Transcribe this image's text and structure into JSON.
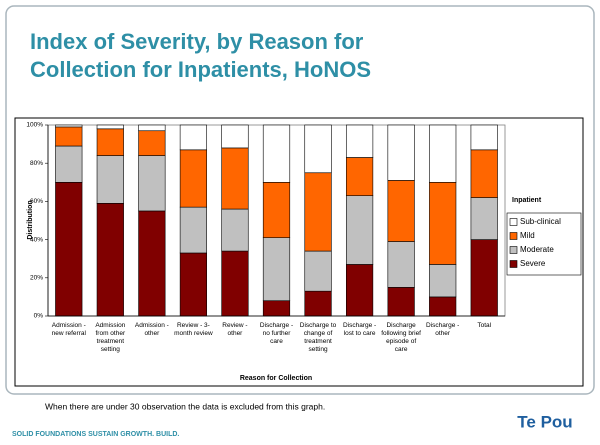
{
  "slide_title": "Index of Severity, by Reason for Collection for Inpatients, HoNOS",
  "chart_data": {
    "type": "stacked_bar",
    "categories": [
      "Admission - new referral",
      "Admission from other treatment setting",
      "Admission - other",
      "Review - 3-month review",
      "Review - other",
      "Discharge - no further care",
      "Discharge to change of treatment setting",
      "Discharge - lost to care",
      "Discharge following brief episode of care",
      "Discharge - other",
      "Total"
    ],
    "series": [
      {
        "name": "Severe",
        "color": "#800000",
        "values": [
          70,
          59,
          55,
          33,
          34,
          8,
          13,
          27,
          15,
          10,
          40
        ]
      },
      {
        "name": "Moderate",
        "color": "#c0c0c0",
        "values": [
          19,
          25,
          29,
          24,
          22,
          33,
          21,
          36,
          24,
          17,
          22
        ]
      },
      {
        "name": "Mild",
        "color": "#ff6600",
        "values": [
          10,
          14,
          13,
          30,
          32,
          29,
          41,
          20,
          32,
          43,
          25
        ]
      },
      {
        "name": "Sub-clinical",
        "color": "#ffffff",
        "values": [
          1,
          2,
          3,
          13,
          12,
          30,
          25,
          17,
          29,
          30,
          13
        ]
      }
    ],
    "ylim": [
      0,
      100
    ],
    "yticks": [
      {
        "value": 0,
        "label": "0%"
      },
      {
        "value": 20,
        "label": "20%"
      },
      {
        "value": 40,
        "label": "40%"
      },
      {
        "value": 60,
        "label": "60%"
      },
      {
        "value": 80,
        "label": "80%"
      },
      {
        "value": 100,
        "label": "100%"
      }
    ],
    "y_label": "Distribution",
    "x_label": "Reason for Collection",
    "legend_title": "Inpatient",
    "legend": "right"
  },
  "note": "When there are under 30 observation the data is excluded from this graph.",
  "footer": "SOLID FOUNDATIONS SUSTAIN GROWTH. BUILD.",
  "logo": "Te Pou"
}
